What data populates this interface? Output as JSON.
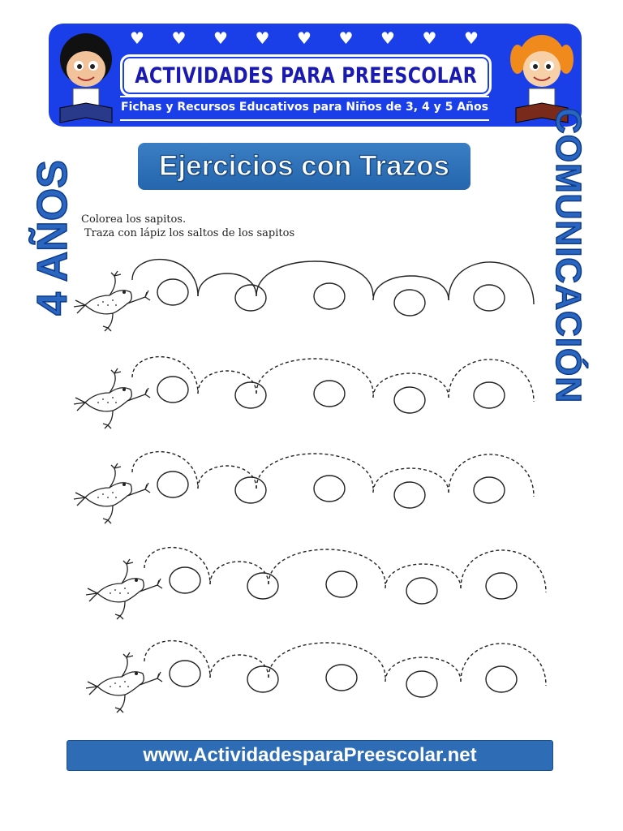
{
  "header": {
    "brand": "ACTIVIDADES PARA PREESCOLAR",
    "subtitle": "Fichas y Recursos Educativos para Niños de 3, 4 y 5 Años",
    "heart_count": 9,
    "brand_color": "#1a3fe8"
  },
  "title": "Ejercicios con Trazos",
  "side_labels": {
    "age": "4 AÑOS",
    "subject": "COMUNICACIÓN"
  },
  "instructions": {
    "line1": "Colorea los sapitos.",
    "line2": "Traza con lápiz los saltos de los sapitos"
  },
  "exercise": {
    "rows": [
      {
        "style": "solid"
      },
      {
        "style": "dashed"
      },
      {
        "style": "dashed"
      },
      {
        "style": "dashed"
      },
      {
        "style": "dashed"
      }
    ],
    "icon": "frog-icon"
  },
  "footer": {
    "url": "www.ActividadesparaPreescolar.net",
    "color": "#2e6db5"
  }
}
